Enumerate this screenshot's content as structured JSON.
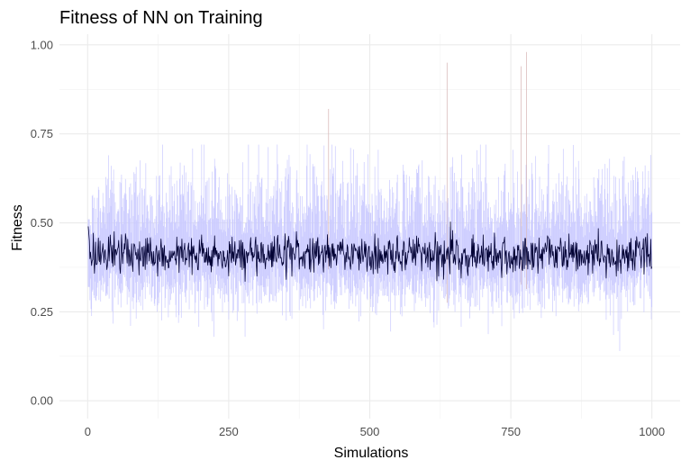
{
  "chart_data": {
    "type": "line",
    "title": "Fitness of NN on Training",
    "xlabel": "Simulations",
    "ylabel": "Fitness",
    "xlim": [
      -50,
      1050
    ],
    "ylim": [
      -0.05,
      1.03
    ],
    "x_ticks": [
      0,
      250,
      500,
      750,
      1000
    ],
    "x_tick_labels": [
      "0",
      "250",
      "500",
      "750",
      "1000"
    ],
    "y_ticks": [
      0.0,
      0.25,
      0.5,
      0.75,
      1.0
    ],
    "y_tick_labels": [
      "0.00",
      "0.25",
      "0.50",
      "0.75",
      "1.00"
    ],
    "x_minor_ticks": [
      125,
      375,
      625,
      875
    ],
    "y_minor_ticks": [
      0.125,
      0.375,
      0.625,
      0.875
    ],
    "grid": true,
    "legend": "none",
    "x_range": [
      1,
      1000
    ],
    "series": [
      {
        "role": "band",
        "color": "#c9c9ff",
        "spike_color": "#d8b8b8",
        "lower_typical": [
          0.25,
          0.35
        ],
        "upper_typical": [
          0.45,
          0.7
        ],
        "spikes": [
          {
            "x": 427,
            "y": 0.82
          },
          {
            "x": 637,
            "y": 0.95
          },
          {
            "x": 768,
            "y": 0.94
          },
          {
            "x": 778,
            "y": 0.98
          },
          {
            "x": 943,
            "y": 0.14
          }
        ]
      },
      {
        "role": "mean",
        "color": "#000033",
        "level": 0.41,
        "start_value": 0.49,
        "typical_range": [
          0.34,
          0.48
        ]
      }
    ]
  }
}
